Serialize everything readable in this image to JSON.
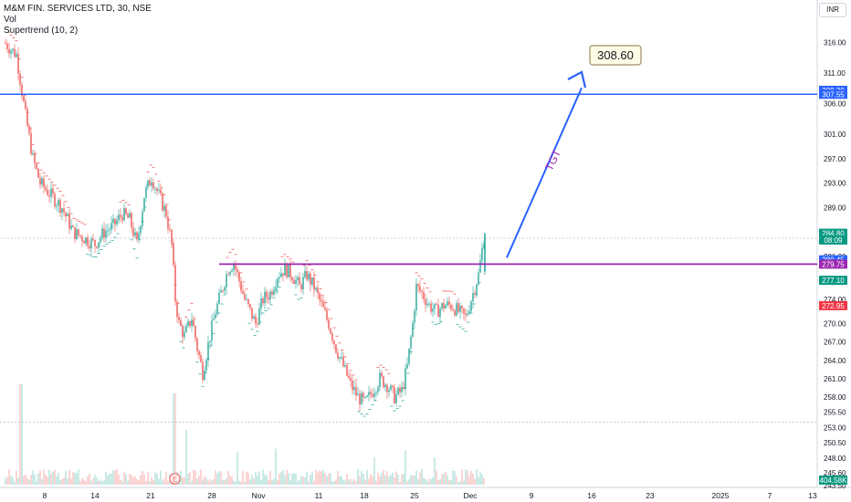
{
  "legend": {
    "symbol": "M&M FIN. SERVICES LTD, 30, NSE",
    "vol": "Vol",
    "supertrend": "Supertrend (10, 2)"
  },
  "currency": "INR",
  "colors": {
    "up": "#26a69a",
    "down": "#ef5350",
    "blue": "#2962ff",
    "purple": "#9c27b0",
    "grid": "#e0e3eb"
  },
  "chart_data": {
    "type": "candlestick",
    "ylim": [
      243.5,
      318.5
    ],
    "y_ticks": [
      316.0,
      311.0,
      306.0,
      301.0,
      297.0,
      293.0,
      289.0,
      284.0,
      281.0,
      277.0,
      274.0,
      270.0,
      267.0,
      264.0,
      261.0,
      258.0,
      255.5,
      253.0,
      250.5,
      248.0,
      245.6,
      243.5
    ],
    "y_tick_labels": [
      "316.00",
      "311.00",
      "306.00",
      "301.00",
      "297.00",
      "293.00",
      "289.00",
      "284.00",
      "281.00",
      "277.00",
      "274.00",
      "270.00",
      "267.00",
      "264.00",
      "261.00",
      "258.00",
      "255.50",
      "253.00",
      "250.50",
      "248.00",
      "245.60",
      "243.50"
    ],
    "x_ticks": [
      "8",
      "14",
      "21",
      "28",
      "Nov",
      "11",
      "18",
      "25",
      "Dec",
      "9",
      "16",
      "23",
      "2025",
      "7",
      "13"
    ],
    "price_path": [
      [
        5,
        316
      ],
      [
        18,
        314
      ],
      [
        28,
        304
      ],
      [
        36,
        297
      ],
      [
        44,
        293
      ],
      [
        56,
        291
      ],
      [
        68,
        289
      ],
      [
        80,
        285
      ],
      [
        92,
        284
      ],
      [
        104,
        283
      ],
      [
        114,
        285
      ],
      [
        124,
        286
      ],
      [
        134,
        288
      ],
      [
        142,
        287
      ],
      [
        150,
        283
      ],
      [
        158,
        291
      ],
      [
        166,
        294
      ],
      [
        174,
        291
      ],
      [
        182,
        288
      ],
      [
        188,
        283
      ],
      [
        192,
        274
      ],
      [
        196,
        270
      ],
      [
        202,
        268
      ],
      [
        210,
        271
      ],
      [
        216,
        266
      ],
      [
        222,
        262
      ],
      [
        230,
        268
      ],
      [
        236,
        272
      ],
      [
        244,
        276
      ],
      [
        250,
        279
      ],
      [
        256,
        280
      ],
      [
        262,
        277
      ],
      [
        268,
        274
      ],
      [
        274,
        272
      ],
      [
        280,
        270
      ],
      [
        288,
        274
      ],
      [
        296,
        275
      ],
      [
        304,
        278
      ],
      [
        312,
        279
      ],
      [
        320,
        278
      ],
      [
        328,
        276
      ],
      [
        336,
        278
      ],
      [
        344,
        276
      ],
      [
        352,
        273
      ],
      [
        360,
        270
      ],
      [
        368,
        266
      ],
      [
        376,
        263
      ],
      [
        384,
        260
      ],
      [
        392,
        258
      ],
      [
        400,
        257
      ],
      [
        408,
        259
      ],
      [
        416,
        261
      ],
      [
        424,
        260
      ],
      [
        432,
        258
      ],
      [
        440,
        259
      ],
      [
        446,
        263
      ],
      [
        452,
        270
      ],
      [
        456,
        276
      ],
      [
        462,
        275
      ],
      [
        470,
        273
      ],
      [
        478,
        272
      ],
      [
        486,
        273
      ],
      [
        494,
        273
      ],
      [
        502,
        272
      ],
      [
        510,
        271
      ],
      [
        518,
        275
      ],
      [
        524,
        278
      ],
      [
        530,
        284
      ]
    ],
    "horizontal_lines": [
      {
        "value": 307.55,
        "color": "#2962ff"
      },
      {
        "value": 279.75,
        "color": "#9c27b0"
      }
    ],
    "price_badges": [
      {
        "label": "308.20",
        "value": 308.2,
        "color": "#2962ff"
      },
      {
        "label": "307.55",
        "value": 307.55,
        "color": "#2962ff"
      },
      {
        "label": "284.80",
        "value": 284.8,
        "color": "#089981"
      },
      {
        "label": "08:09",
        "value": 283.7,
        "color": "#089981"
      },
      {
        "label": "280.45",
        "value": 280.45,
        "color": "#2962ff"
      },
      {
        "label": "279.75",
        "value": 279.75,
        "color": "#9c27b0"
      },
      {
        "label": "277.10",
        "value": 277.1,
        "color": "#089981"
      },
      {
        "label": "272.95",
        "value": 272.95,
        "color": "#f23645"
      },
      {
        "label": "404.58K",
        "value": 244.4,
        "color": "#089981"
      }
    ],
    "annotations": {
      "target_label": "308.60",
      "arrow_text": "TGT"
    }
  }
}
